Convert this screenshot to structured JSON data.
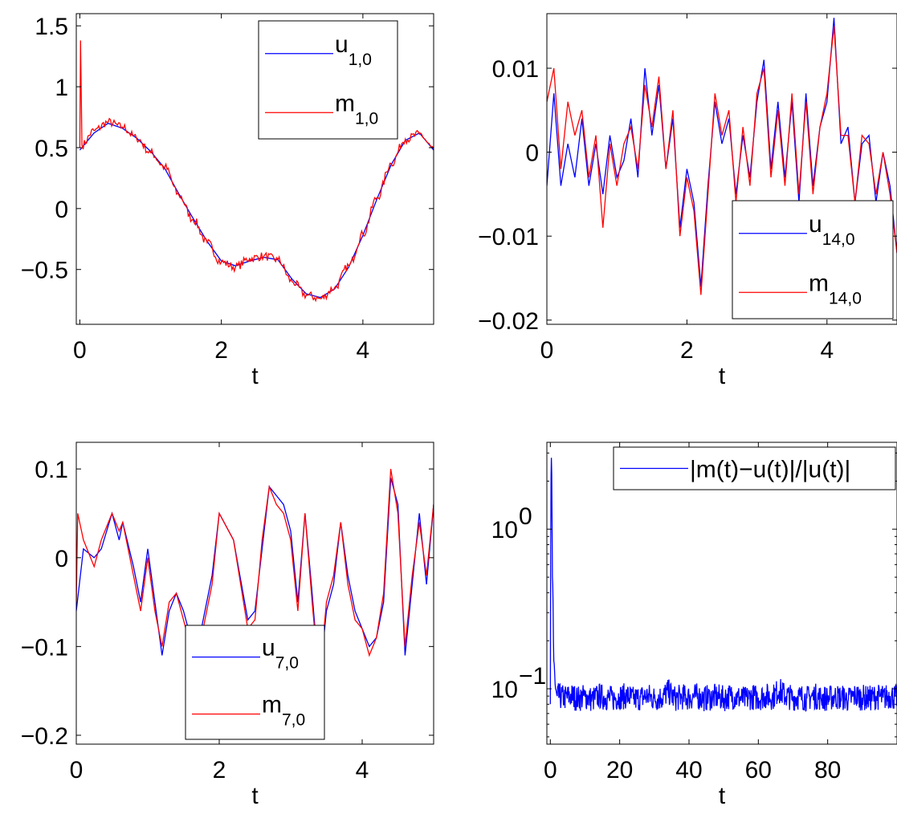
{
  "chart_data": [
    {
      "type": "line",
      "xlabel": "t",
      "xlim": [
        -0.05,
        5
      ],
      "ylim": [
        -0.95,
        1.6
      ],
      "xticks": [
        0,
        2,
        4
      ],
      "xtick_labels": [
        "0",
        "2",
        "4"
      ],
      "yticks": [
        -0.5,
        0,
        0.5,
        1,
        1.5
      ],
      "ytick_labels": [
        "−0.5",
        "0",
        "0.5",
        "1",
        "1.5"
      ],
      "legend_placement": "top-right",
      "series": [
        {
          "name": "u",
          "subscript": "1,0",
          "color": "#0000ff",
          "x": [
            0,
            0.2,
            0.4,
            0.6,
            0.8,
            1.0,
            1.2,
            1.4,
            1.6,
            1.8,
            2.0,
            2.2,
            2.4,
            2.6,
            2.8,
            3.0,
            3.2,
            3.4,
            3.6,
            3.8,
            4.0,
            4.2,
            4.4,
            4.6,
            4.8,
            5.0
          ],
          "y": [
            0.48,
            0.62,
            0.7,
            0.66,
            0.58,
            0.47,
            0.33,
            0.12,
            -0.08,
            -0.27,
            -0.43,
            -0.47,
            -0.43,
            -0.4,
            -0.42,
            -0.58,
            -0.7,
            -0.73,
            -0.66,
            -0.48,
            -0.22,
            0.08,
            0.36,
            0.56,
            0.62,
            0.48
          ]
        },
        {
          "name": "m",
          "subscript": "1,0",
          "color": "#ff0000",
          "x": [
            0,
            0.01,
            0.03,
            0.2,
            0.4,
            0.6,
            0.8,
            1.0,
            1.2,
            1.4,
            1.6,
            1.8,
            2.0,
            2.2,
            2.4,
            2.6,
            2.8,
            3.0,
            3.2,
            3.4,
            3.6,
            3.8,
            4.0,
            4.2,
            4.4,
            4.6,
            4.8,
            5.0
          ],
          "y": [
            0.5,
            1.38,
            0.52,
            0.64,
            0.71,
            0.67,
            0.58,
            0.46,
            0.34,
            0.11,
            -0.09,
            -0.28,
            -0.44,
            -0.48,
            -0.41,
            -0.39,
            -0.42,
            -0.6,
            -0.71,
            -0.74,
            -0.65,
            -0.47,
            -0.21,
            0.09,
            0.37,
            0.57,
            0.61,
            0.49
          ]
        }
      ]
    },
    {
      "type": "line",
      "xlabel": "t",
      "xlim": [
        0,
        5
      ],
      "ylim": [
        -0.0205,
        0.0165
      ],
      "xticks": [
        0,
        2,
        4
      ],
      "xtick_labels": [
        "0",
        "2",
        "4"
      ],
      "yticks": [
        -0.02,
        -0.01,
        0,
        0.01
      ],
      "ytick_labels": [
        "−0.02",
        "−0.01",
        "0",
        "0.01"
      ],
      "legend_placement": "right",
      "series": [
        {
          "name": "u",
          "subscript": "14,0",
          "color": "#0000ff",
          "x": [
            0,
            0.1,
            0.2,
            0.3,
            0.4,
            0.5,
            0.6,
            0.7,
            0.8,
            0.9,
            1.0,
            1.1,
            1.2,
            1.3,
            1.4,
            1.5,
            1.6,
            1.7,
            1.8,
            1.9,
            2.0,
            2.1,
            2.2,
            2.3,
            2.4,
            2.5,
            2.6,
            2.7,
            2.8,
            2.9,
            3.0,
            3.1,
            3.2,
            3.3,
            3.4,
            3.5,
            3.6,
            3.7,
            3.8,
            3.9,
            4.0,
            4.1,
            4.2,
            4.3,
            4.4,
            4.5,
            4.6,
            4.7,
            4.8,
            4.9,
            5.0
          ],
          "y": [
            -0.004,
            0.007,
            -0.004,
            0.001,
            -0.003,
            0.004,
            -0.004,
            0.001,
            -0.005,
            0.002,
            -0.003,
            -0.001,
            0.004,
            -0.003,
            0.01,
            0.002,
            0.008,
            -0.002,
            0.004,
            -0.009,
            -0.002,
            -0.006,
            -0.016,
            -0.004,
            0.006,
            0.001,
            0.004,
            -0.005,
            0.002,
            -0.003,
            0.006,
            0.011,
            -0.002,
            0.006,
            -0.003,
            0.006,
            -0.006,
            0.007,
            -0.004,
            0.003,
            0.006,
            0.016,
            0.001,
            0.003,
            -0.006,
            0.001,
            0.002,
            -0.006,
            0.0,
            -0.004,
            -0.012
          ]
        },
        {
          "name": "m",
          "subscript": "14,0",
          "color": "#ff0000",
          "x": [
            0,
            0.1,
            0.2,
            0.3,
            0.4,
            0.5,
            0.6,
            0.7,
            0.8,
            0.9,
            1.0,
            1.1,
            1.2,
            1.3,
            1.4,
            1.5,
            1.6,
            1.7,
            1.8,
            1.9,
            2.0,
            2.1,
            2.2,
            2.3,
            2.4,
            2.5,
            2.6,
            2.7,
            2.8,
            2.9,
            3.0,
            3.1,
            3.2,
            3.3,
            3.4,
            3.5,
            3.6,
            3.7,
            3.8,
            3.9,
            4.0,
            4.1,
            4.2,
            4.3,
            4.4,
            4.5,
            4.6,
            4.7,
            4.8,
            4.9,
            5.0
          ],
          "y": [
            0.006,
            0.01,
            -0.002,
            0.006,
            0.002,
            0.005,
            -0.003,
            0.002,
            -0.009,
            0.001,
            -0.004,
            0.001,
            0.003,
            -0.002,
            0.008,
            0.003,
            0.009,
            -0.002,
            0.005,
            -0.01,
            -0.003,
            -0.007,
            -0.017,
            -0.005,
            0.007,
            0.002,
            0.005,
            -0.006,
            0.003,
            -0.004,
            0.007,
            0.01,
            -0.003,
            0.005,
            -0.004,
            0.007,
            -0.005,
            0.006,
            -0.005,
            0.003,
            0.007,
            0.015,
            0.002,
            0.002,
            -0.006,
            0.002,
            0.001,
            -0.005,
            0.0,
            -0.005,
            -0.012
          ]
        }
      ]
    },
    {
      "type": "line",
      "xlabel": "t",
      "xlim": [
        0,
        5
      ],
      "ylim": [
        -0.21,
        0.13
      ],
      "xticks": [
        0,
        2,
        4
      ],
      "xtick_labels": [
        "0",
        "2",
        "4"
      ],
      "yticks": [
        -0.2,
        -0.1,
        0,
        0.1
      ],
      "ytick_labels": [
        "−0.2",
        "−0.1",
        "0",
        "0.1"
      ],
      "legend_placement": "bottom-center",
      "series": [
        {
          "name": "u",
          "subscript": "7,0",
          "color": "#0000ff",
          "x": [
            0,
            0.1,
            0.25,
            0.35,
            0.5,
            0.6,
            0.65,
            0.8,
            0.9,
            1.0,
            1.1,
            1.2,
            1.3,
            1.4,
            1.5,
            1.6,
            1.7,
            1.8,
            1.9,
            2.0,
            2.2,
            2.4,
            2.5,
            2.6,
            2.7,
            2.8,
            2.9,
            3.0,
            3.1,
            3.2,
            3.3,
            3.4,
            3.5,
            3.6,
            3.7,
            3.8,
            3.9,
            4.0,
            4.1,
            4.2,
            4.3,
            4.4,
            4.5,
            4.6,
            4.7,
            4.8,
            4.9,
            5.0
          ],
          "y": [
            -0.06,
            0.01,
            0.0,
            0.01,
            0.05,
            0.02,
            0.04,
            -0.01,
            -0.05,
            0.01,
            -0.05,
            -0.11,
            -0.06,
            -0.04,
            -0.06,
            -0.09,
            -0.1,
            -0.06,
            -0.02,
            0.05,
            0.02,
            -0.07,
            -0.06,
            0.01,
            0.08,
            0.07,
            0.06,
            0.03,
            -0.05,
            0.05,
            -0.04,
            -0.14,
            -0.06,
            -0.03,
            0.04,
            -0.02,
            -0.06,
            -0.08,
            -0.1,
            -0.09,
            -0.05,
            0.09,
            0.06,
            -0.11,
            -0.03,
            0.05,
            -0.03,
            0.06
          ]
        },
        {
          "name": "m",
          "subscript": "7,0",
          "color": "#ff0000",
          "x": [
            0,
            0.02,
            0.1,
            0.25,
            0.35,
            0.5,
            0.6,
            0.65,
            0.8,
            0.9,
            1.0,
            1.1,
            1.2,
            1.3,
            1.4,
            1.5,
            1.6,
            1.7,
            1.8,
            1.9,
            2.0,
            2.2,
            2.4,
            2.5,
            2.6,
            2.7,
            2.8,
            2.9,
            3.0,
            3.1,
            3.2,
            3.3,
            3.4,
            3.5,
            3.6,
            3.7,
            3.8,
            3.9,
            4.0,
            4.1,
            4.2,
            4.3,
            4.4,
            4.5,
            4.6,
            4.7,
            4.8,
            4.9,
            5.0
          ],
          "y": [
            -0.05,
            0.05,
            0.02,
            -0.01,
            0.02,
            0.05,
            0.03,
            0.04,
            -0.02,
            -0.06,
            0.0,
            -0.06,
            -0.1,
            -0.05,
            -0.04,
            -0.07,
            -0.1,
            -0.11,
            -0.07,
            -0.03,
            0.05,
            0.02,
            -0.08,
            -0.07,
            0.02,
            0.08,
            0.06,
            0.05,
            0.02,
            -0.06,
            0.05,
            -0.05,
            -0.14,
            -0.05,
            -0.02,
            0.04,
            -0.03,
            -0.07,
            -0.08,
            -0.11,
            -0.09,
            -0.04,
            0.1,
            0.05,
            -0.1,
            -0.02,
            0.04,
            -0.02,
            0.06
          ]
        }
      ]
    },
    {
      "type": "line",
      "xlabel": "t",
      "xlim": [
        -1,
        100
      ],
      "ylim": [
        0.045,
        3.5
      ],
      "yscale": "log",
      "xticks": [
        0,
        20,
        40,
        60,
        80
      ],
      "xtick_labels": [
        "0",
        "20",
        "40",
        "60",
        "80"
      ],
      "yticks": [
        0.1,
        1
      ],
      "ytick_labels": [
        {
          "base": "10",
          "exp": "−1"
        },
        {
          "base": "10",
          "exp": "0"
        }
      ],
      "legend_placement": "top-right",
      "series": [
        {
          "name": "|m(t)−u(t)|/|u(t)|",
          "color": "#0000ff",
          "x": [
            0,
            0.3,
            0.6,
            1.0,
            1.5,
            2,
            4,
            6,
            8,
            10,
            12,
            14,
            16,
            18,
            20,
            22,
            24,
            26,
            28,
            30,
            32,
            34,
            36,
            38,
            40,
            42,
            44,
            46,
            48,
            50,
            52,
            54,
            56,
            58,
            60,
            62,
            64,
            66,
            68,
            70,
            72,
            74,
            76,
            78,
            80,
            82,
            84,
            86,
            88,
            90,
            92,
            94,
            96,
            98,
            100
          ],
          "y": [
            0.08,
            2.8,
            0.5,
            0.15,
            0.1,
            0.09,
            0.088,
            0.09,
            0.087,
            0.089,
            0.086,
            0.09,
            0.088,
            0.087,
            0.089,
            0.09,
            0.086,
            0.088,
            0.09,
            0.087,
            0.088,
            0.095,
            0.087,
            0.089,
            0.088,
            0.09,
            0.087,
            0.088,
            0.089,
            0.087,
            0.09,
            0.088,
            0.086,
            0.089,
            0.088,
            0.09,
            0.089,
            0.097,
            0.09,
            0.088,
            0.089,
            0.087,
            0.09,
            0.088,
            0.087,
            0.089,
            0.088,
            0.086,
            0.09,
            0.088,
            0.087,
            0.089,
            0.088,
            0.09,
            0.088
          ]
        }
      ]
    }
  ]
}
